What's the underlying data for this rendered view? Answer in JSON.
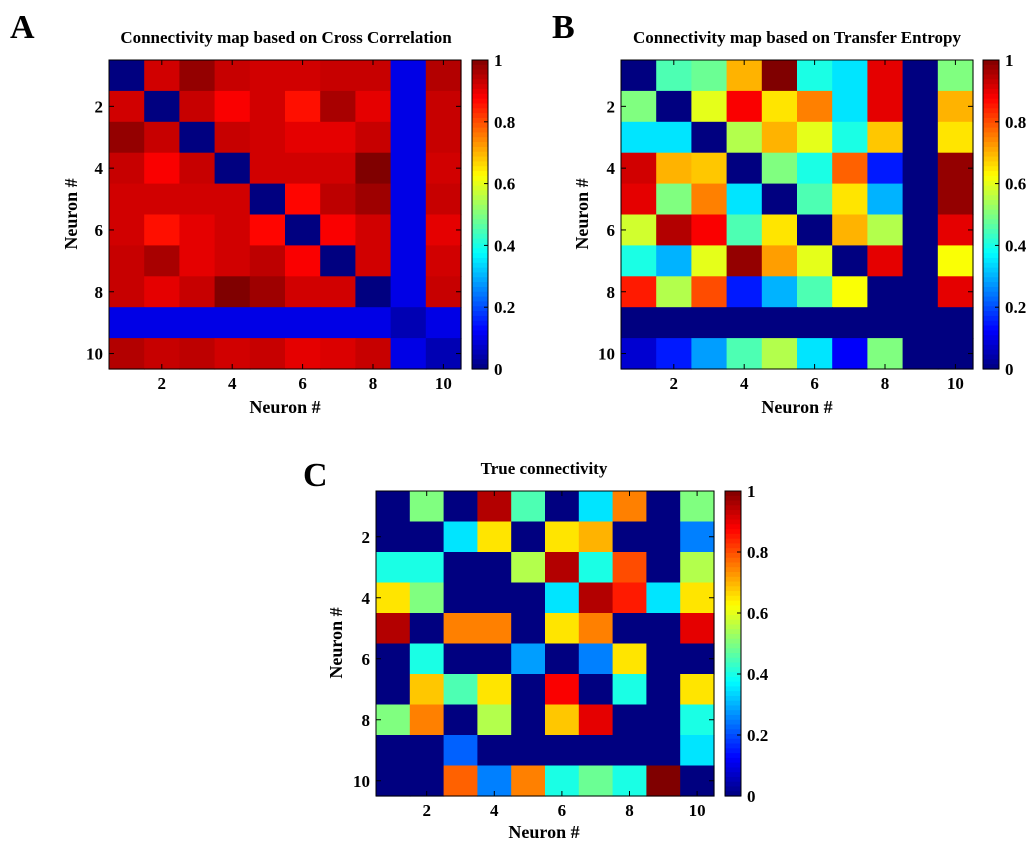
{
  "chart_data": [
    {
      "id": "A",
      "type": "heatmap",
      "panel_letter": "A",
      "title": "Connectivity map based on Cross Correlation",
      "xlabel": "Neuron #",
      "ylabel": "Neuron #",
      "x_ticks": [
        "2",
        "4",
        "6",
        "8",
        "10"
      ],
      "y_ticks": [
        "2",
        "4",
        "6",
        "8",
        "10"
      ],
      "colorbar_ticks": [
        "0",
        "0.2",
        "0.4",
        "0.6",
        "0.8",
        "1"
      ],
      "clim": [
        0,
        1
      ],
      "colormap": "jet",
      "matrix": [
        [
          0.0,
          0.92,
          0.98,
          0.93,
          0.92,
          0.92,
          0.93,
          0.93,
          0.1,
          0.95
        ],
        [
          0.92,
          0.0,
          0.93,
          0.88,
          0.92,
          0.86,
          0.96,
          0.9,
          0.1,
          0.93
        ],
        [
          0.98,
          0.93,
          0.0,
          0.93,
          0.92,
          0.9,
          0.9,
          0.93,
          0.1,
          0.93
        ],
        [
          0.93,
          0.88,
          0.93,
          0.0,
          0.92,
          0.92,
          0.92,
          1.0,
          0.1,
          0.92
        ],
        [
          0.92,
          0.92,
          0.92,
          0.92,
          0.0,
          0.87,
          0.94,
          0.97,
          0.1,
          0.93
        ],
        [
          0.92,
          0.86,
          0.9,
          0.92,
          0.87,
          0.0,
          0.88,
          0.92,
          0.1,
          0.9
        ],
        [
          0.93,
          0.96,
          0.9,
          0.92,
          0.94,
          0.88,
          0.0,
          0.92,
          0.1,
          0.92
        ],
        [
          0.93,
          0.9,
          0.93,
          1.0,
          0.97,
          0.92,
          0.92,
          0.0,
          0.1,
          0.93
        ],
        [
          0.1,
          0.1,
          0.1,
          0.1,
          0.1,
          0.1,
          0.1,
          0.1,
          0.05,
          0.1
        ],
        [
          0.95,
          0.93,
          0.94,
          0.92,
          0.93,
          0.9,
          0.91,
          0.93,
          0.1,
          0.05
        ]
      ]
    },
    {
      "id": "B",
      "type": "heatmap",
      "panel_letter": "B",
      "title": "Connectivity map based on Transfer Entropy",
      "xlabel": "Neuron #",
      "ylabel": "Neuron #",
      "x_ticks": [
        "2",
        "4",
        "6",
        "8",
        "10"
      ],
      "y_ticks": [
        "2",
        "4",
        "6",
        "8",
        "10"
      ],
      "colorbar_ticks": [
        "0",
        "0.2",
        "0.4",
        "0.6",
        "0.8",
        "1"
      ],
      "clim": [
        0,
        1
      ],
      "colormap": "jet",
      "matrix": [
        [
          0.0,
          0.45,
          0.48,
          0.7,
          1.0,
          0.4,
          0.35,
          0.9,
          0.0,
          0.5
        ],
        [
          0.5,
          0.0,
          0.6,
          0.88,
          0.65,
          0.75,
          0.35,
          0.9,
          0.0,
          0.7
        ],
        [
          0.35,
          0.35,
          0.0,
          0.55,
          0.7,
          0.6,
          0.4,
          0.68,
          0.0,
          0.65
        ],
        [
          0.92,
          0.7,
          0.68,
          0.0,
          0.5,
          0.4,
          0.78,
          0.15,
          0.0,
          0.98
        ],
        [
          0.9,
          0.5,
          0.75,
          0.35,
          0.0,
          0.45,
          0.65,
          0.3,
          0.0,
          0.98
        ],
        [
          0.58,
          0.95,
          0.88,
          0.45,
          0.65,
          0.0,
          0.7,
          0.55,
          0.0,
          0.9
        ],
        [
          0.4,
          0.3,
          0.6,
          0.98,
          0.72,
          0.6,
          0.0,
          0.9,
          0.0,
          0.62
        ],
        [
          0.85,
          0.55,
          0.8,
          0.15,
          0.3,
          0.45,
          0.62,
          0.0,
          0.0,
          0.9
        ],
        [
          0.0,
          0.0,
          0.0,
          0.0,
          0.0,
          0.0,
          0.0,
          0.0,
          0.0,
          0.0
        ],
        [
          0.08,
          0.15,
          0.28,
          0.45,
          0.55,
          0.35,
          0.12,
          0.5,
          0.0,
          0.0
        ]
      ]
    },
    {
      "id": "C",
      "type": "heatmap",
      "panel_letter": "C",
      "title": "True connectivity",
      "xlabel": "Neuron #",
      "ylabel": "Neuron #",
      "x_ticks": [
        "2",
        "4",
        "6",
        "8",
        "10"
      ],
      "y_ticks": [
        "2",
        "4",
        "6",
        "8",
        "10"
      ],
      "colorbar_ticks": [
        "0",
        "0.2",
        "0.4",
        "0.6",
        "0.8",
        "1"
      ],
      "clim": [
        0,
        1
      ],
      "colormap": "jet",
      "matrix": [
        [
          0.0,
          0.5,
          0.0,
          0.95,
          0.45,
          0.0,
          0.35,
          0.75,
          0.0,
          0.5
        ],
        [
          0.0,
          0.0,
          0.35,
          0.65,
          0.0,
          0.65,
          0.7,
          0.0,
          0.0,
          0.25
        ],
        [
          0.4,
          0.4,
          0.0,
          0.0,
          0.55,
          0.95,
          0.4,
          0.8,
          0.0,
          0.55
        ],
        [
          0.65,
          0.5,
          0.0,
          0.0,
          0.0,
          0.35,
          0.95,
          0.85,
          0.35,
          0.65
        ],
        [
          0.95,
          0.0,
          0.75,
          0.75,
          0.0,
          0.65,
          0.75,
          0.0,
          0.0,
          0.9
        ],
        [
          0.0,
          0.4,
          0.0,
          0.0,
          0.28,
          0.0,
          0.25,
          0.65,
          0.0,
          0.0
        ],
        [
          0.0,
          0.68,
          0.45,
          0.65,
          0.0,
          0.88,
          0.0,
          0.4,
          0.0,
          0.65
        ],
        [
          0.5,
          0.75,
          0.0,
          0.55,
          0.0,
          0.68,
          0.9,
          0.0,
          0.0,
          0.4
        ],
        [
          0.0,
          0.0,
          0.22,
          0.0,
          0.0,
          0.0,
          0.0,
          0.0,
          0.0,
          0.35
        ],
        [
          0.0,
          0.0,
          0.78,
          0.25,
          0.75,
          0.4,
          0.48,
          0.4,
          1.0,
          0.0
        ]
      ]
    }
  ]
}
